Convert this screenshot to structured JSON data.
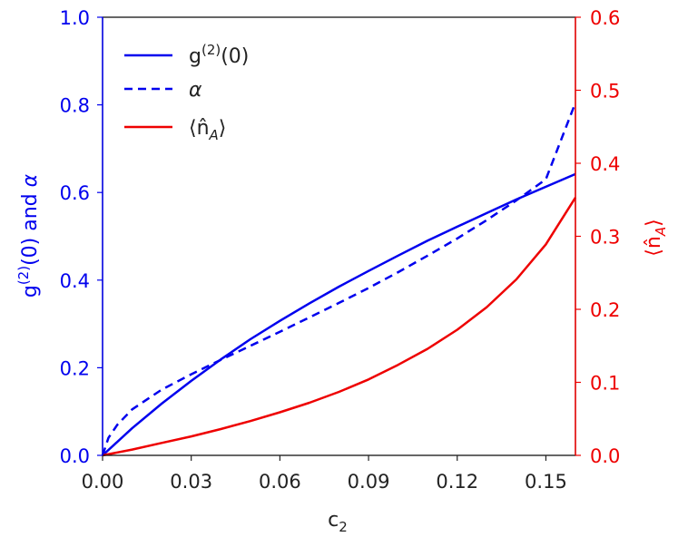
{
  "chart_data": {
    "type": "line",
    "xlabel": "c",
    "xlabel_sub": "2",
    "xlim": [
      0.0,
      0.16
    ],
    "xticks": [
      "0.00",
      "0.03",
      "0.06",
      "0.09",
      "0.12",
      "0.15"
    ],
    "xtick_values": [
      0.0,
      0.03,
      0.06,
      0.09,
      0.12,
      0.15
    ],
    "y_left": {
      "label_g": "g",
      "label_sup": "(2)",
      "label_rest": "(0) and ",
      "label_alpha": "α",
      "lim": [
        0.0,
        1.0
      ],
      "ticks": [
        "0.0",
        "0.2",
        "0.4",
        "0.6",
        "0.8",
        "1.0"
      ],
      "tick_values": [
        0.0,
        0.2,
        0.4,
        0.6,
        0.8,
        1.0
      ],
      "color": "#0000ee"
    },
    "y_right": {
      "label": "⟨n̂",
      "label_sub": "A",
      "label_close": "⟩",
      "lim": [
        0.0,
        0.6
      ],
      "ticks": [
        "0.0",
        "0.1",
        "0.2",
        "0.3",
        "0.4",
        "0.5",
        "0.6"
      ],
      "tick_values": [
        0.0,
        0.1,
        0.2,
        0.3,
        0.4,
        0.5,
        0.6
      ],
      "color": "#ee0000"
    },
    "grid": false,
    "legend_position": "top-left",
    "series": [
      {
        "name": "g(2)(0)",
        "legend_main": "g",
        "legend_sup": "(2)",
        "legend_rest": "(0)",
        "axis": "left",
        "color": "#0000ee",
        "style": "solid",
        "x": [
          0.0,
          0.01,
          0.02,
          0.03,
          0.04,
          0.05,
          0.06,
          0.07,
          0.08,
          0.09,
          0.1,
          0.11,
          0.12,
          0.13,
          0.14,
          0.15,
          0.16
        ],
        "y": [
          0.0,
          0.062,
          0.118,
          0.17,
          0.219,
          0.265,
          0.307,
          0.347,
          0.385,
          0.421,
          0.456,
          0.49,
          0.522,
          0.553,
          0.584,
          0.613,
          0.642
        ]
      },
      {
        "name": "α",
        "legend_main": "α",
        "legend_sup": "",
        "legend_rest": "",
        "axis": "left",
        "color": "#0000ee",
        "style": "dashed",
        "x": [
          0.0,
          0.002,
          0.005,
          0.01,
          0.02,
          0.03,
          0.04,
          0.05,
          0.06,
          0.07,
          0.08,
          0.09,
          0.1,
          0.11,
          0.12,
          0.13,
          0.14,
          0.15,
          0.16
        ],
        "y": [
          0.0,
          0.04,
          0.07,
          0.105,
          0.15,
          0.185,
          0.218,
          0.25,
          0.282,
          0.315,
          0.348,
          0.382,
          0.418,
          0.456,
          0.495,
          0.537,
          0.582,
          0.63,
          0.805
        ]
      },
      {
        "name": "⟨n̂A⟩",
        "legend_main": "⟨n̂",
        "legend_sub": "A",
        "legend_rest": "⟩",
        "axis": "right",
        "color": "#ee0000",
        "style": "solid",
        "x": [
          0.0,
          0.01,
          0.02,
          0.03,
          0.04,
          0.05,
          0.06,
          0.07,
          0.08,
          0.09,
          0.1,
          0.11,
          0.12,
          0.13,
          0.14,
          0.15,
          0.16
        ],
        "y": [
          0.0,
          0.008,
          0.017,
          0.026,
          0.036,
          0.047,
          0.059,
          0.072,
          0.087,
          0.104,
          0.124,
          0.146,
          0.172,
          0.203,
          0.241,
          0.289,
          0.353
        ]
      }
    ]
  }
}
